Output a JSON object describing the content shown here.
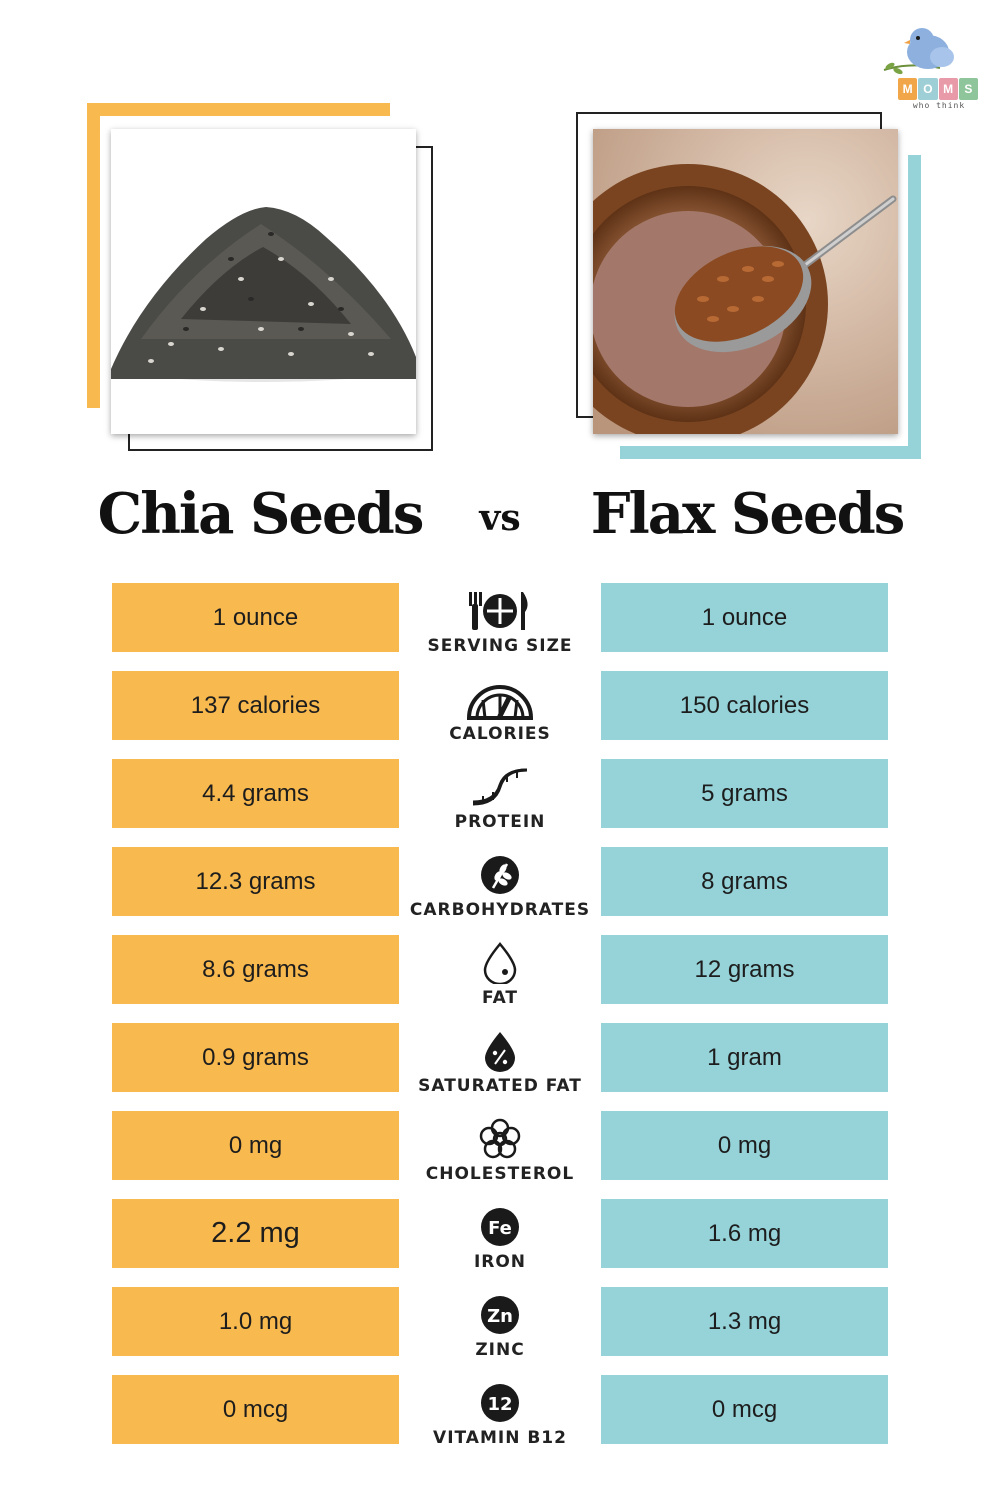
{
  "brand": {
    "letters": [
      "M",
      "O",
      "M",
      "S"
    ],
    "letter_colors": [
      "#f2a64a",
      "#9fcfd6",
      "#e89aa8",
      "#8fc59a"
    ],
    "tagline": "who think",
    "icon": "bird-logo-icon"
  },
  "colors": {
    "chia_accent": "#f8b94e",
    "flax_accent": "#95d3d9",
    "text": "#1a1a1a"
  },
  "images": {
    "chia": "chia-seed-pile-photo",
    "flax": "flax-seeds-spoon-bowl-photo"
  },
  "header": {
    "left_title": "Chia Seeds",
    "vs": "vs",
    "right_title": "Flax Seeds"
  },
  "rows": [
    {
      "label": "SERVING SIZE",
      "icon": "plate-fork-knife-icon",
      "chia": "1 ounce",
      "flax": "1 ounce"
    },
    {
      "label": "CALORIES",
      "icon": "gauge-icon",
      "chia": "137 calories",
      "flax": "150 calories"
    },
    {
      "label": "PROTEIN",
      "icon": "dna-helix-icon",
      "chia": "4.4 grams",
      "flax": "5 grams"
    },
    {
      "label": "CARBOHYDRATES",
      "icon": "wheat-icon",
      "chia": "12.3 grams",
      "flax": "8 grams"
    },
    {
      "label": "FAT",
      "icon": "drop-icon",
      "chia": "8.6 grams",
      "flax": "12 grams"
    },
    {
      "label": "SATURATED FAT",
      "icon": "percent-drop-icon",
      "chia": "0.9 grams",
      "flax": "1 gram"
    },
    {
      "label": "CHOLESTEROL",
      "icon": "cholesterol-molecule-icon",
      "chia": "0 mg",
      "flax": "0 mg"
    },
    {
      "label": "IRON",
      "icon": "iron-fe-icon",
      "icon_text": "Fe",
      "chia": "2.2 mg",
      "flax": "1.6 mg"
    },
    {
      "label": "ZINC",
      "icon": "zinc-zn-icon",
      "icon_text": "Zn",
      "chia": "1.0 mg",
      "flax": "1.3 mg"
    },
    {
      "label": "VITAMIN B12",
      "icon": "vitamin-b12-icon",
      "icon_text": "12",
      "chia": "0 mcg",
      "flax": "0 mcg"
    }
  ]
}
